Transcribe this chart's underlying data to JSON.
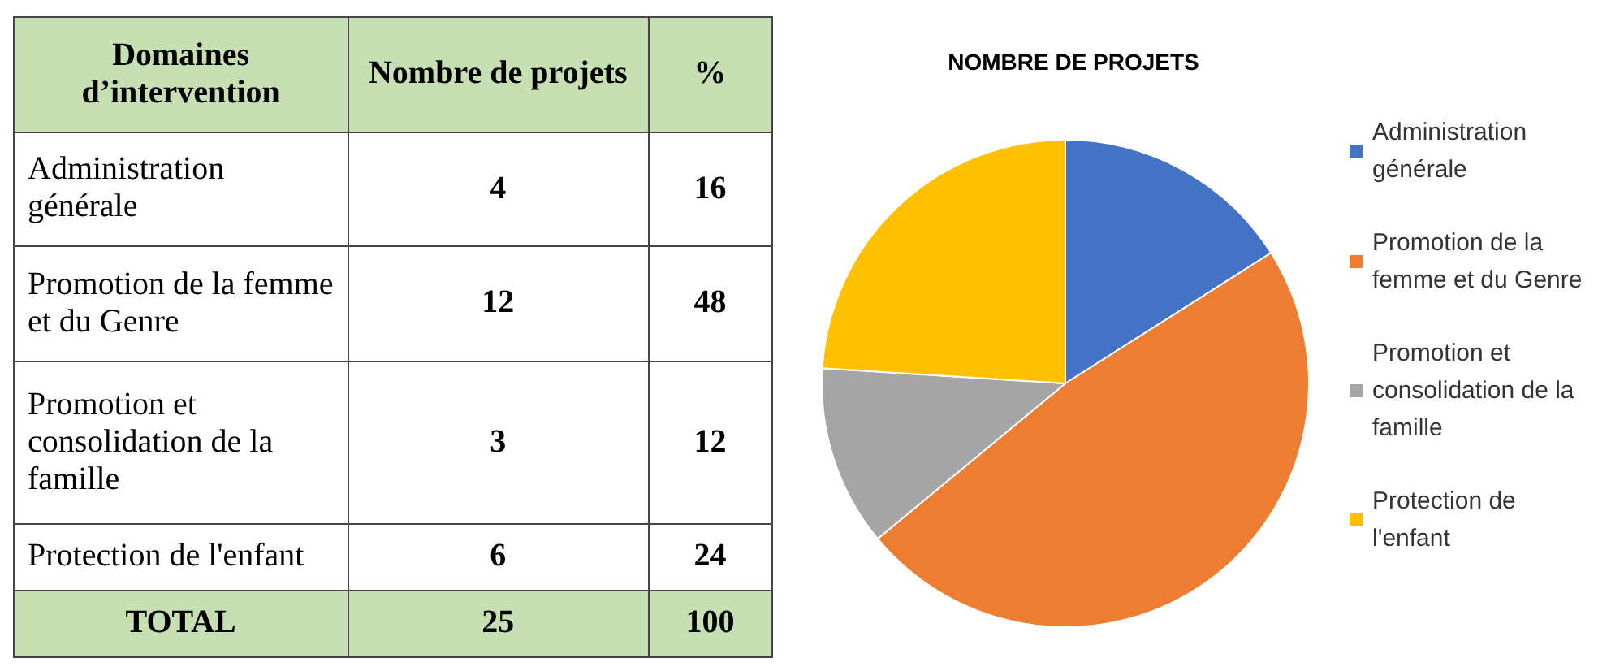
{
  "chart_data": [
    {
      "type": "other",
      "categories": [
        "Administration générale",
        "Promotion de la femme et du Genre",
        "Promotion et consolidation de la famille",
        "Protection de l'enfant"
      ],
      "series": [
        {
          "name": "Nombre de projets",
          "values": [
            4,
            12,
            3,
            6
          ]
        },
        {
          "name": "%",
          "values": [
            16,
            48,
            12,
            24
          ]
        }
      ],
      "data_labels": true,
      "totals": [
        "25",
        "100"
      ],
      "annotations": [
        "Domaines d’intervention",
        "TOTAL"
      ]
    },
    {
      "type": "pie",
      "title": "NOMBRE DE PROJETS",
      "categories": [
        "Administration générale",
        "Promotion de la femme et du Genre",
        "Promotion et consolidation de la famille",
        "Protection de l'enfant"
      ],
      "values": [
        16,
        48,
        12,
        24
      ],
      "colors": [
        "#4472c4",
        "#ed7d31",
        "#a5a5a5",
        "#ffc000"
      ],
      "legend": "right"
    }
  ]
}
